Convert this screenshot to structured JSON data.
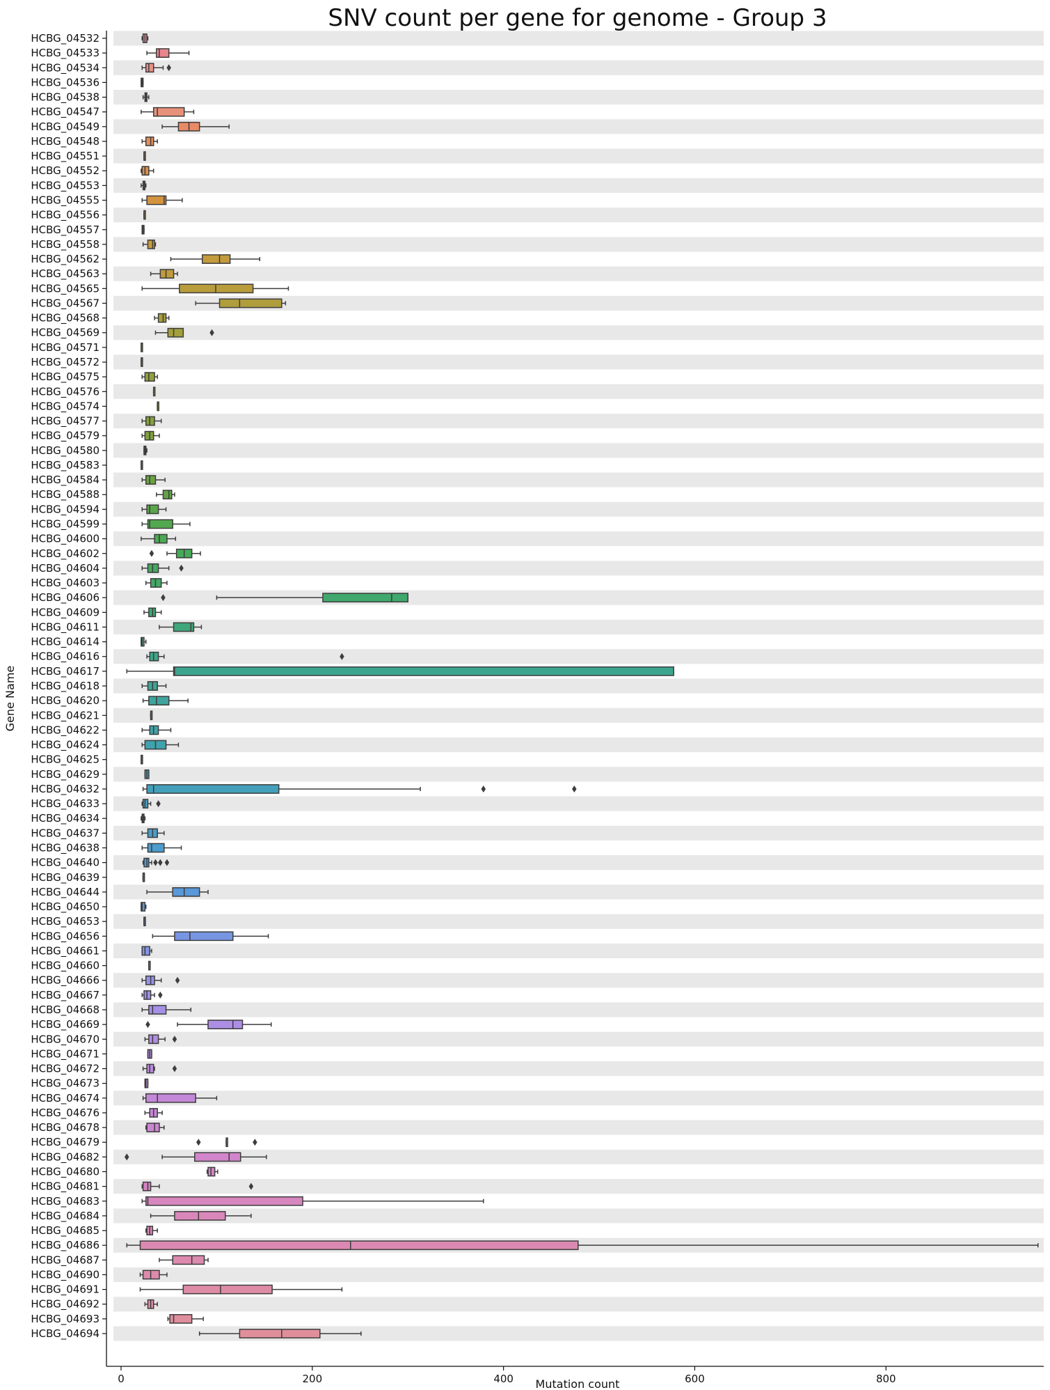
{
  "chart_data": {
    "type": "boxplot",
    "title": "SNV count per gene for genome - Group 3",
    "xlabel": "Mutation count",
    "ylabel": "Gene Name",
    "xlim": [
      -8,
      965
    ],
    "xticks": [
      0,
      200,
      400,
      600,
      800
    ],
    "orientation": "horizontal",
    "row_band_color": "#e8e8e8",
    "grid": false,
    "genes": [
      {
        "name": "HCBG_04532",
        "color": "#e69aa0",
        "whisker_low": 22,
        "q1": 23,
        "median": 25,
        "q3": 27,
        "whisker_high": 28,
        "outliers": []
      },
      {
        "name": "HCBG_04533",
        "color": "#e9858d",
        "whisker_low": 27,
        "q1": 37,
        "median": 40,
        "q3": 50,
        "whisker_high": 71,
        "outliers": []
      },
      {
        "name": "HCBG_04534",
        "color": "#e9908a",
        "whisker_low": 22,
        "q1": 26,
        "median": 29,
        "q3": 34,
        "whisker_high": 44,
        "outliers": [
          50
        ]
      },
      {
        "name": "HCBG_04536",
        "color": "#e89585",
        "whisker_low": 21,
        "q1": 21,
        "median": 22,
        "q3": 23,
        "whisker_high": 23,
        "outliers": []
      },
      {
        "name": "HCBG_04538",
        "color": "#e89585",
        "whisker_low": 23,
        "q1": 25,
        "median": 26,
        "q3": 27,
        "whisker_high": 29,
        "outliers": []
      },
      {
        "name": "HCBG_04547",
        "color": "#e8917a",
        "whisker_low": 21,
        "q1": 34,
        "median": 38,
        "q3": 66,
        "whisker_high": 76,
        "outliers": []
      },
      {
        "name": "HCBG_04549",
        "color": "#e88a66",
        "whisker_low": 43,
        "q1": 60,
        "median": 71,
        "q3": 82,
        "whisker_high": 113,
        "outliers": []
      },
      {
        "name": "HCBG_04548",
        "color": "#e58f5c",
        "whisker_low": 22,
        "q1": 26,
        "median": 31,
        "q3": 34,
        "whisker_high": 38,
        "outliers": []
      },
      {
        "name": "HCBG_04551",
        "color": "#e39055",
        "whisker_low": 24,
        "q1": 24,
        "median": 24,
        "q3": 25,
        "whisker_high": 25,
        "outliers": []
      },
      {
        "name": "HCBG_04552",
        "color": "#dc8f4e",
        "whisker_low": 21,
        "q1": 22,
        "median": 25,
        "q3": 29,
        "whisker_high": 34,
        "outliers": []
      },
      {
        "name": "HCBG_04553",
        "color": "#d89150",
        "whisker_low": 21,
        "q1": 23,
        "median": 24,
        "q3": 25,
        "whisker_high": 26,
        "outliers": []
      },
      {
        "name": "HCBG_04555",
        "color": "#d3933f",
        "whisker_low": 22,
        "q1": 27,
        "median": 45,
        "q3": 47,
        "whisker_high": 64,
        "outliers": []
      },
      {
        "name": "HCBG_04556",
        "color": "#cf9a45",
        "whisker_low": 24,
        "q1": 24,
        "median": 24,
        "q3": 24,
        "whisker_high": 24,
        "outliers": []
      },
      {
        "name": "HCBG_04557",
        "color": "#cc9a40",
        "whisker_low": 22,
        "q1": 22,
        "median": 23,
        "q3": 24,
        "whisker_high": 24,
        "outliers": []
      },
      {
        "name": "HCBG_04558",
        "color": "#c99a3c",
        "whisker_low": 23,
        "q1": 28,
        "median": 33,
        "q3": 35,
        "whisker_high": 36,
        "outliers": []
      },
      {
        "name": "HCBG_04562",
        "color": "#c39b3c",
        "whisker_low": 52,
        "q1": 85,
        "median": 103,
        "q3": 114,
        "whisker_high": 145,
        "outliers": []
      },
      {
        "name": "HCBG_04563",
        "color": "#bf9b3d",
        "whisker_low": 31,
        "q1": 41,
        "median": 47,
        "q3": 55,
        "whisker_high": 59,
        "outliers": []
      },
      {
        "name": "HCBG_04565",
        "color": "#b99c3c",
        "whisker_low": 22,
        "q1": 61,
        "median": 99,
        "q3": 138,
        "whisker_high": 175,
        "outliers": []
      },
      {
        "name": "HCBG_04567",
        "color": "#b09d3c",
        "whisker_low": 78,
        "q1": 103,
        "median": 124,
        "q3": 168,
        "whisker_high": 172,
        "outliers": []
      },
      {
        "name": "HCBG_04568",
        "color": "#a99e3c",
        "whisker_low": 35,
        "q1": 39,
        "median": 44,
        "q3": 47,
        "whisker_high": 50,
        "outliers": []
      },
      {
        "name": "HCBG_04569",
        "color": "#a39f3c",
        "whisker_low": 36,
        "q1": 49,
        "median": 55,
        "q3": 65,
        "whisker_high": 65,
        "outliers": [
          95
        ]
      },
      {
        "name": "HCBG_04571",
        "color": "#9ea03c",
        "whisker_low": 21,
        "q1": 21,
        "median": 21,
        "q3": 21,
        "whisker_high": 21,
        "outliers": []
      },
      {
        "name": "HCBG_04572",
        "color": "#9aa03c",
        "whisker_low": 21,
        "q1": 21,
        "median": 21,
        "q3": 22,
        "whisker_high": 22,
        "outliers": []
      },
      {
        "name": "HCBG_04575",
        "color": "#94a03c",
        "whisker_low": 22,
        "q1": 25,
        "median": 29,
        "q3": 35,
        "whisker_high": 38,
        "outliers": []
      },
      {
        "name": "HCBG_04576",
        "color": "#8fa03c",
        "whisker_low": 34,
        "q1": 34,
        "median": 34,
        "q3": 34,
        "whisker_high": 34,
        "outliers": []
      },
      {
        "name": "HCBG_04574",
        "color": "#8aa03c",
        "whisker_low": 38,
        "q1": 38,
        "median": 38,
        "q3": 38,
        "whisker_high": 38,
        "outliers": []
      },
      {
        "name": "HCBG_04577",
        "color": "#84a03d",
        "whisker_low": 22,
        "q1": 26,
        "median": 30,
        "q3": 35,
        "whisker_high": 42,
        "outliers": []
      },
      {
        "name": "HCBG_04579",
        "color": "#7ea13e",
        "whisker_low": 22,
        "q1": 25,
        "median": 30,
        "q3": 34,
        "whisker_high": 40,
        "outliers": []
      },
      {
        "name": "HCBG_04580",
        "color": "#78a140",
        "whisker_low": 24,
        "q1": 24,
        "median": 25,
        "q3": 26,
        "whisker_high": 27,
        "outliers": []
      },
      {
        "name": "HCBG_04583",
        "color": "#72a242",
        "whisker_low": 21,
        "q1": 21,
        "median": 21,
        "q3": 21,
        "whisker_high": 21,
        "outliers": []
      },
      {
        "name": "HCBG_04584",
        "color": "#6aa344",
        "whisker_low": 22,
        "q1": 26,
        "median": 30,
        "q3": 36,
        "whisker_high": 46,
        "outliers": []
      },
      {
        "name": "HCBG_04588",
        "color": "#62a447",
        "whisker_low": 37,
        "q1": 44,
        "median": 50,
        "q3": 53,
        "whisker_high": 56,
        "outliers": []
      },
      {
        "name": "HCBG_04594",
        "color": "#5aa64a",
        "whisker_low": 22,
        "q1": 27,
        "median": 30,
        "q3": 39,
        "whisker_high": 47,
        "outliers": []
      },
      {
        "name": "HCBG_04599",
        "color": "#52a84f",
        "whisker_low": 22,
        "q1": 28,
        "median": 30,
        "q3": 54,
        "whisker_high": 72,
        "outliers": []
      },
      {
        "name": "HCBG_04600",
        "color": "#4ba953",
        "whisker_low": 21,
        "q1": 35,
        "median": 40,
        "q3": 48,
        "whisker_high": 57,
        "outliers": []
      },
      {
        "name": "HCBG_04602",
        "color": "#47aa59",
        "whisker_low": 48,
        "q1": 58,
        "median": 66,
        "q3": 74,
        "whisker_high": 83,
        "outliers": [
          32
        ]
      },
      {
        "name": "HCBG_04604",
        "color": "#44a95f",
        "whisker_low": 22,
        "q1": 28,
        "median": 33,
        "q3": 39,
        "whisker_high": 50,
        "outliers": [
          63
        ]
      },
      {
        "name": "HCBG_04603",
        "color": "#42a965",
        "whisker_low": 26,
        "q1": 31,
        "median": 36,
        "q3": 42,
        "whisker_high": 48,
        "outliers": []
      },
      {
        "name": "HCBG_04606",
        "color": "#40a86c",
        "whisker_low": 100,
        "q1": 211,
        "median": 283,
        "q3": 300,
        "whisker_high": 300,
        "outliers": [
          44
        ]
      },
      {
        "name": "HCBG_04609",
        "color": "#3fa873",
        "whisker_low": 24,
        "q1": 29,
        "median": 33,
        "q3": 36,
        "whisker_high": 42,
        "outliers": []
      },
      {
        "name": "HCBG_04611",
        "color": "#3ea87a",
        "whisker_low": 40,
        "q1": 55,
        "median": 73,
        "q3": 76,
        "whisker_high": 84,
        "outliers": []
      },
      {
        "name": "HCBG_04614",
        "color": "#3da781",
        "whisker_low": 21,
        "q1": 21,
        "median": 22,
        "q3": 24,
        "whisker_high": 26,
        "outliers": []
      },
      {
        "name": "HCBG_04616",
        "color": "#3da688",
        "whisker_low": 27,
        "q1": 30,
        "median": 34,
        "q3": 39,
        "whisker_high": 45,
        "outliers": [
          231
        ]
      },
      {
        "name": "HCBG_04617",
        "color": "#3da58f",
        "whisker_low": 6,
        "q1": 55,
        "median": 56,
        "q3": 578,
        "whisker_high": 578,
        "outliers": []
      },
      {
        "name": "HCBG_04618",
        "color": "#3ea596",
        "whisker_low": 22,
        "q1": 28,
        "median": 33,
        "q3": 38,
        "whisker_high": 47,
        "outliers": []
      },
      {
        "name": "HCBG_04620",
        "color": "#3ea49d",
        "whisker_low": 23,
        "q1": 29,
        "median": 37,
        "q3": 50,
        "whisker_high": 70,
        "outliers": []
      },
      {
        "name": "HCBG_04621",
        "color": "#3fa3a3",
        "whisker_low": 31,
        "q1": 31,
        "median": 31,
        "q3": 31,
        "whisker_high": 31,
        "outliers": []
      },
      {
        "name": "HCBG_04622",
        "color": "#3fa3a8",
        "whisker_low": 22,
        "q1": 30,
        "median": 34,
        "q3": 39,
        "whisker_high": 52,
        "outliers": []
      },
      {
        "name": "HCBG_04624",
        "color": "#40a2ad",
        "whisker_low": 22,
        "q1": 25,
        "median": 36,
        "q3": 47,
        "whisker_high": 60,
        "outliers": []
      },
      {
        "name": "HCBG_04625",
        "color": "#41a1b2",
        "whisker_low": 21,
        "q1": 21,
        "median": 21,
        "q3": 21,
        "whisker_high": 21,
        "outliers": []
      },
      {
        "name": "HCBG_04629",
        "color": "#42a0b6",
        "whisker_low": 25,
        "q1": 25,
        "median": 27,
        "q3": 29,
        "whisker_high": 29,
        "outliers": []
      },
      {
        "name": "HCBG_04632",
        "color": "#44a0ba",
        "whisker_low": 23,
        "q1": 27,
        "median": 34,
        "q3": 165,
        "whisker_high": 313,
        "outliers": [
          379,
          474
        ]
      },
      {
        "name": "HCBG_04633",
        "color": "#469fbf",
        "whisker_low": 22,
        "q1": 23,
        "median": 25,
        "q3": 28,
        "whisker_high": 31,
        "outliers": [
          39
        ]
      },
      {
        "name": "HCBG_04634",
        "color": "#489ec3",
        "whisker_low": 21,
        "q1": 22,
        "median": 23,
        "q3": 24,
        "whisker_high": 25,
        "outliers": []
      },
      {
        "name": "HCBG_04637",
        "color": "#4a9dc7",
        "whisker_low": 22,
        "q1": 28,
        "median": 33,
        "q3": 38,
        "whisker_high": 45,
        "outliers": []
      },
      {
        "name": "HCBG_04638",
        "color": "#4d9ccb",
        "whisker_low": 22,
        "q1": 28,
        "median": 32,
        "q3": 45,
        "whisker_high": 63,
        "outliers": []
      },
      {
        "name": "HCBG_04640",
        "color": "#519ad0",
        "whisker_low": 23,
        "q1": 24,
        "median": 27,
        "q3": 29,
        "whisker_high": 32,
        "outliers": [
          36,
          41,
          48
        ]
      },
      {
        "name": "HCBG_04639",
        "color": "#5599d4",
        "whisker_low": 23,
        "q1": 23,
        "median": 23,
        "q3": 23,
        "whisker_high": 23,
        "outliers": []
      },
      {
        "name": "HCBG_04644",
        "color": "#5998d9",
        "whisker_low": 27,
        "q1": 54,
        "median": 66,
        "q3": 82,
        "whisker_high": 91,
        "outliers": []
      },
      {
        "name": "HCBG_04650",
        "color": "#6096dc",
        "whisker_low": 21,
        "q1": 21,
        "median": 22,
        "q3": 25,
        "whisker_high": 26,
        "outliers": []
      },
      {
        "name": "HCBG_04653",
        "color": "#6a96df",
        "whisker_low": 24,
        "q1": 24,
        "median": 24,
        "q3": 24,
        "whisker_high": 24,
        "outliers": []
      },
      {
        "name": "HCBG_04656",
        "color": "#7895e2",
        "whisker_low": 33,
        "q1": 56,
        "median": 72,
        "q3": 117,
        "whisker_high": 154,
        "outliers": []
      },
      {
        "name": "HCBG_04661",
        "color": "#8494e5",
        "whisker_low": 22,
        "q1": 22,
        "median": 25,
        "q3": 30,
        "whisker_high": 32,
        "outliers": []
      },
      {
        "name": "HCBG_04660",
        "color": "#8e93e6",
        "whisker_low": 29,
        "q1": 29,
        "median": 29,
        "q3": 29,
        "whisker_high": 29,
        "outliers": []
      },
      {
        "name": "HCBG_04666",
        "color": "#9792e6",
        "whisker_low": 22,
        "q1": 26,
        "median": 31,
        "q3": 35,
        "whisker_high": 42,
        "outliers": [
          59
        ]
      },
      {
        "name": "HCBG_04667",
        "color": "#9e91e6",
        "whisker_low": 22,
        "q1": 24,
        "median": 27,
        "q3": 31,
        "whisker_high": 35,
        "outliers": [
          41
        ]
      },
      {
        "name": "HCBG_04668",
        "color": "#a590e5",
        "whisker_low": 22,
        "q1": 29,
        "median": 33,
        "q3": 47,
        "whisker_high": 73,
        "outliers": []
      },
      {
        "name": "HCBG_04669",
        "color": "#ac8fe4",
        "whisker_low": 59,
        "q1": 91,
        "median": 117,
        "q3": 127,
        "whisker_high": 157,
        "outliers": [
          28
        ]
      },
      {
        "name": "HCBG_04670",
        "color": "#b28de2",
        "whisker_low": 25,
        "q1": 29,
        "median": 33,
        "q3": 39,
        "whisker_high": 46,
        "outliers": [
          56
        ]
      },
      {
        "name": "HCBG_04671",
        "color": "#b78ce0",
        "whisker_low": 28,
        "q1": 28,
        "median": 30,
        "q3": 32,
        "whisker_high": 32,
        "outliers": []
      },
      {
        "name": "HCBG_04672",
        "color": "#bc8bde",
        "whisker_low": 23,
        "q1": 27,
        "median": 30,
        "q3": 34,
        "whisker_high": 35,
        "outliers": [
          56
        ]
      },
      {
        "name": "HCBG_04673",
        "color": "#c089db",
        "whisker_low": 25,
        "q1": 25,
        "median": 26,
        "q3": 28,
        "whisker_high": 28,
        "outliers": []
      },
      {
        "name": "HCBG_04674",
        "color": "#c488d8",
        "whisker_low": 23,
        "q1": 26,
        "median": 38,
        "q3": 78,
        "whisker_high": 100,
        "outliers": []
      },
      {
        "name": "HCBG_04676",
        "color": "#c887d5",
        "whisker_low": 25,
        "q1": 30,
        "median": 34,
        "q3": 38,
        "whisker_high": 43,
        "outliers": []
      },
      {
        "name": "HCBG_04678",
        "color": "#cb86d2",
        "whisker_low": 26,
        "q1": 27,
        "median": 35,
        "q3": 40,
        "whisker_high": 45,
        "outliers": []
      },
      {
        "name": "HCBG_04679",
        "color": "#ce85ce",
        "whisker_low": 110,
        "q1": 110,
        "median": 110,
        "q3": 110,
        "whisker_high": 110,
        "outliers": [
          81,
          140
        ]
      },
      {
        "name": "HCBG_04682",
        "color": "#d185ca",
        "whisker_low": 43,
        "q1": 77,
        "median": 113,
        "q3": 125,
        "whisker_high": 152,
        "outliers": [
          6
        ]
      },
      {
        "name": "HCBG_04680",
        "color": "#d385c6",
        "whisker_low": 90,
        "q1": 91,
        "median": 94,
        "q3": 98,
        "whisker_high": 101,
        "outliers": []
      },
      {
        "name": "HCBG_04681",
        "color": "#d585c2",
        "whisker_low": 22,
        "q1": 23,
        "median": 28,
        "q3": 31,
        "whisker_high": 40,
        "outliers": [
          136
        ]
      },
      {
        "name": "HCBG_04683",
        "color": "#d786be",
        "whisker_low": 22,
        "q1": 26,
        "median": 28,
        "q3": 190,
        "whisker_high": 379,
        "outliers": []
      },
      {
        "name": "HCBG_04684",
        "color": "#d987ba",
        "whisker_low": 31,
        "q1": 56,
        "median": 81,
        "q3": 109,
        "whisker_high": 136,
        "outliers": []
      },
      {
        "name": "HCBG_04685",
        "color": "#da88b6",
        "whisker_low": 26,
        "q1": 27,
        "median": 30,
        "q3": 33,
        "whisker_high": 38,
        "outliers": []
      },
      {
        "name": "HCBG_04686",
        "color": "#db89b2",
        "whisker_low": 6,
        "q1": 20,
        "median": 240,
        "q3": 478,
        "whisker_high": 959,
        "outliers": []
      },
      {
        "name": "HCBG_04687",
        "color": "#dc8aae",
        "whisker_low": 40,
        "q1": 54,
        "median": 74,
        "q3": 87,
        "whisker_high": 91,
        "outliers": []
      },
      {
        "name": "HCBG_04690",
        "color": "#dd8baa",
        "whisker_low": 20,
        "q1": 23,
        "median": 31,
        "q3": 40,
        "whisker_high": 48,
        "outliers": []
      },
      {
        "name": "HCBG_04691",
        "color": "#de8ca6",
        "whisker_low": 20,
        "q1": 65,
        "median": 104,
        "q3": 158,
        "whisker_high": 231,
        "outliers": []
      },
      {
        "name": "HCBG_04692",
        "color": "#df8da2",
        "whisker_low": 25,
        "q1": 28,
        "median": 31,
        "q3": 34,
        "whisker_high": 38,
        "outliers": []
      },
      {
        "name": "HCBG_04693",
        "color": "#e08e9e",
        "whisker_low": 49,
        "q1": 51,
        "median": 55,
        "q3": 74,
        "whisker_high": 86,
        "outliers": []
      },
      {
        "name": "HCBG_04694",
        "color": "#e08f9a",
        "whisker_low": 82,
        "q1": 124,
        "median": 168,
        "q3": 208,
        "whisker_high": 251,
        "outliers": []
      }
    ]
  }
}
